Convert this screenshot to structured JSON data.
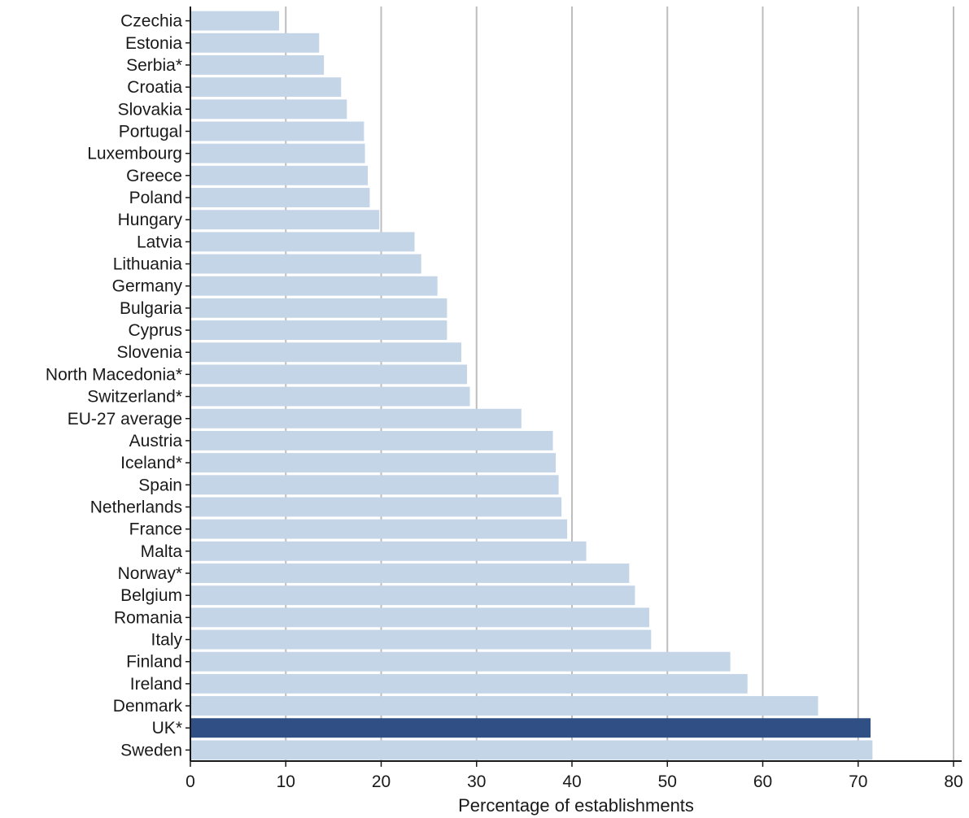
{
  "chart_data": {
    "type": "bar",
    "orientation": "horizontal",
    "xlabel": "Percentage of establishments",
    "ylabel": "",
    "xlim": [
      0,
      80
    ],
    "xticks": [
      0,
      10,
      20,
      30,
      40,
      50,
      60,
      70,
      80
    ],
    "grid": "vertical",
    "colors": {
      "default": "#c5d5e8",
      "highlight": "#2f4f85"
    },
    "categories": [
      "Czechia",
      "Estonia",
      "Serbia*",
      "Croatia",
      "Slovakia",
      "Portugal",
      "Luxembourg",
      "Greece",
      "Poland",
      "Hungary",
      "Latvia",
      "Lithuania",
      "Germany",
      "Bulgaria",
      "Cyprus",
      "Slovenia",
      "North Macedonia*",
      "Switzerland*",
      "EU-27 average",
      "Austria",
      "Iceland*",
      "Spain",
      "Netherlands",
      "France",
      "Malta",
      "Norway*",
      "Belgium",
      "Romania",
      "Italy",
      "Finland",
      "Ireland",
      "Denmark",
      "UK*",
      "Sweden"
    ],
    "values": [
      9.3,
      13.5,
      14.0,
      15.8,
      16.4,
      18.2,
      18.3,
      18.6,
      18.8,
      19.8,
      23.5,
      24.2,
      25.9,
      26.9,
      26.9,
      28.4,
      29.0,
      29.3,
      34.7,
      38.0,
      38.3,
      38.6,
      38.9,
      39.5,
      41.5,
      46.0,
      46.6,
      48.1,
      48.3,
      56.6,
      58.4,
      65.8,
      71.3,
      71.5
    ],
    "highlighted": [
      "UK*"
    ]
  }
}
